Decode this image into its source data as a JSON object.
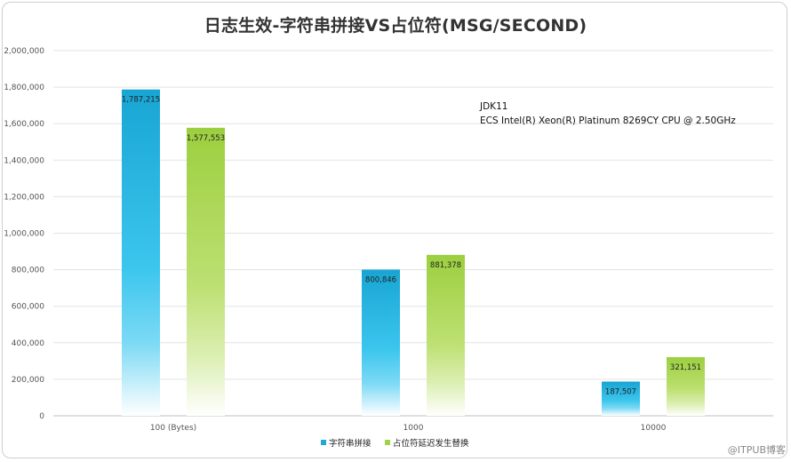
{
  "chart_data": {
    "type": "bar",
    "title": "日志生效-字符串拼接VS占位符(MSG/SECOND)",
    "categories": [
      "100 (Bytes)",
      "1000",
      "10000"
    ],
    "series": [
      {
        "name": "字符串拼接",
        "values": [
          1787215,
          800846,
          187507
        ],
        "labels": [
          "1,787,215",
          "800,846",
          "187,507"
        ],
        "color": "#1fa9d6"
      },
      {
        "name": "占位符延迟发生替换",
        "values": [
          1577553,
          881378,
          321151
        ],
        "labels": [
          "1,577,553",
          "881,378",
          "321,151"
        ],
        "color": "#a2d24a"
      }
    ],
    "ylim": [
      0,
      2000000
    ],
    "yticks": [
      0,
      200000,
      400000,
      600000,
      800000,
      1000000,
      1200000,
      1400000,
      1600000,
      1800000,
      2000000
    ],
    "ytick_labels": [
      "0",
      "200,000",
      "400,000",
      "600,000",
      "800,000",
      "1,000,000",
      "1,200,000",
      "1,400,000",
      "1,600,000",
      "1,800,000",
      "2,000,000"
    ],
    "grid": true,
    "legend": "bottom-center",
    "annotations": [
      "JDK11",
      "ECS Intel(R) Xeon(R) Platinum 8269CY CPU @ 2.50GHz"
    ]
  },
  "watermark": "@ITPUB博客"
}
